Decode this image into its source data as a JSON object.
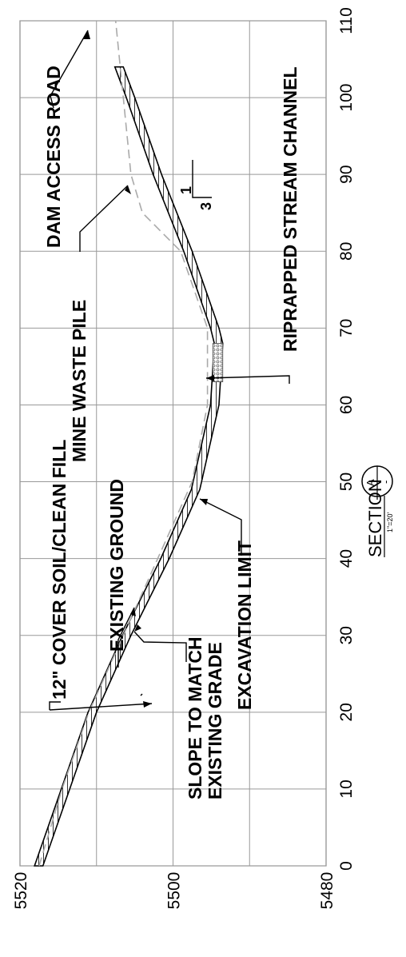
{
  "chart_data": {
    "type": "line",
    "x_axis_ticks": [
      "0",
      "10",
      "20",
      "30",
      "40",
      "50",
      "60",
      "70",
      "80",
      "90",
      "100",
      "110"
    ],
    "y_axis_ticks": [
      "5520",
      "5500",
      "5480"
    ],
    "xlim": [
      0,
      110
    ],
    "ylim": [
      5480,
      5520
    ],
    "grid": true,
    "series": [
      {
        "name": "EXISTING GROUND",
        "style": "dashed",
        "x": [
          0,
          10,
          20,
          30,
          40,
          50,
          60,
          70,
          80,
          85,
          90,
          100,
          110
        ],
        "y": [
          5517.5,
          5514.5,
          5511,
          5506.5,
          5502,
          5497.5,
          5495.5,
          5495.5,
          5499,
          5504,
          5505.5,
          5506.5,
          5507.5
        ]
      },
      {
        "name": "EXCAVATION LIMIT",
        "style": "solid-hatched",
        "x": [
          0,
          10,
          20,
          30,
          40,
          49,
          60,
          68,
          70,
          80,
          90,
          100,
          104
        ],
        "y": [
          5517,
          5513.5,
          5510,
          5505.5,
          5500.5,
          5496.5,
          5494,
          5493.5,
          5494,
          5497.5,
          5501.5,
          5505,
          5506.5
        ]
      }
    ],
    "riprap": {
      "x_start": 63,
      "x_end": 68
    }
  },
  "annotations": {
    "cover": "12\" COVER SOIL/CLEAN FILL",
    "existing_ground": "EXISTING GROUND",
    "slope_line1": "SLOPE TO MATCH",
    "slope_line2": "EXISTING GRADE",
    "excavation": "EXCAVATION LIMIT",
    "mine_waste": "MINE WASTE PILE",
    "dam_road": "DAM ACCESS ROAD",
    "riprap": "RIPRAPPED STREAM CHANNEL",
    "slope_num": "1",
    "slope_den": "3"
  },
  "section_label": {
    "title": "SECTION",
    "scale": "1\"=20'",
    "id": "A",
    "sheet": "-"
  }
}
